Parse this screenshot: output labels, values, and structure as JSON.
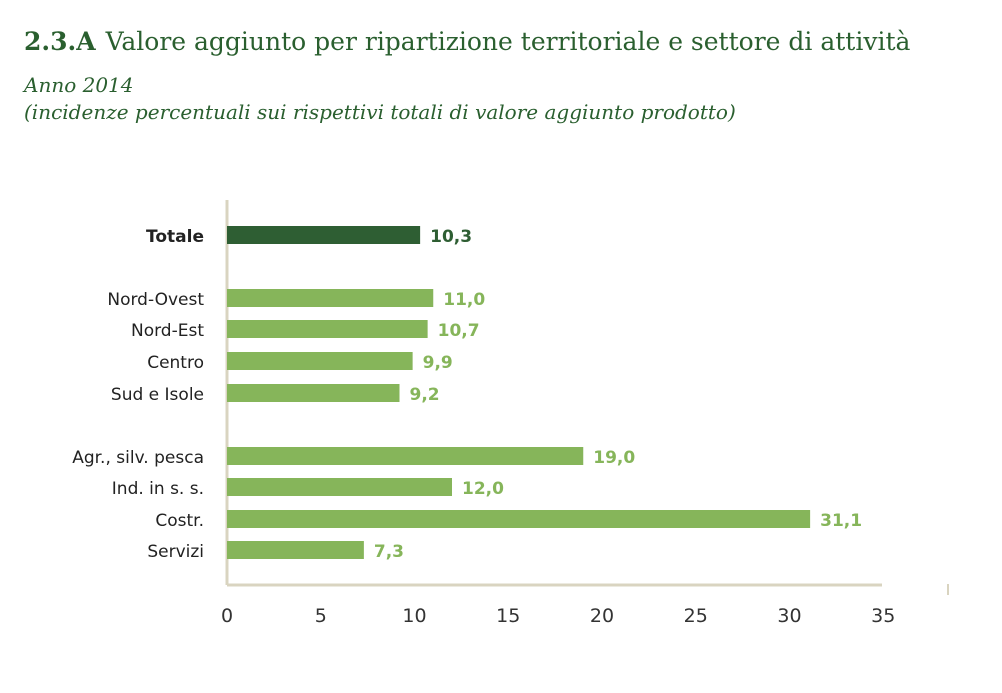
{
  "header": {
    "code": "2.3.A",
    "title": "Valore aggiunto per ripartizione territoriale e settore di attività",
    "subtitle_year": "Anno 2014",
    "subtitle_note": "(incidenze percentuali sui rispettivi totali di valore aggiunto prodotto)"
  },
  "colors": {
    "title": "#2a5f2f",
    "total_bar": "#2e5e33",
    "bar": "#86b55a",
    "axis": "#d9d4c0",
    "category_label": "#222222",
    "tick_label": "#333333"
  },
  "chart_data": {
    "type": "bar",
    "orientation": "horizontal",
    "title": "Valore aggiunto per ripartizione territoriale e settore di attività",
    "xlabel": "",
    "ylabel": "",
    "xlim": [
      0,
      35
    ],
    "xticks": [
      0,
      5,
      10,
      15,
      20,
      25,
      30,
      35
    ],
    "grid": false,
    "categories": [
      "Totale",
      "Nord-Ovest",
      "Nord-Est",
      "Centro",
      "Sud e Isole",
      "Agr., silv. pesca",
      "Ind. in s. s.",
      "Costr.",
      "Servizi"
    ],
    "values": [
      10.3,
      11.0,
      10.7,
      9.9,
      9.2,
      19.0,
      12.0,
      31.1,
      7.3
    ],
    "value_labels": [
      "10,3",
      "11,0",
      "10,7",
      "9,9",
      "9,2",
      "19,0",
      "12,0",
      "31,1",
      "7,3"
    ],
    "groups": [
      "totale",
      "ripartizione",
      "ripartizione",
      "ripartizione",
      "ripartizione",
      "settore",
      "settore",
      "settore",
      "settore"
    ],
    "highlight_category": "Totale"
  }
}
